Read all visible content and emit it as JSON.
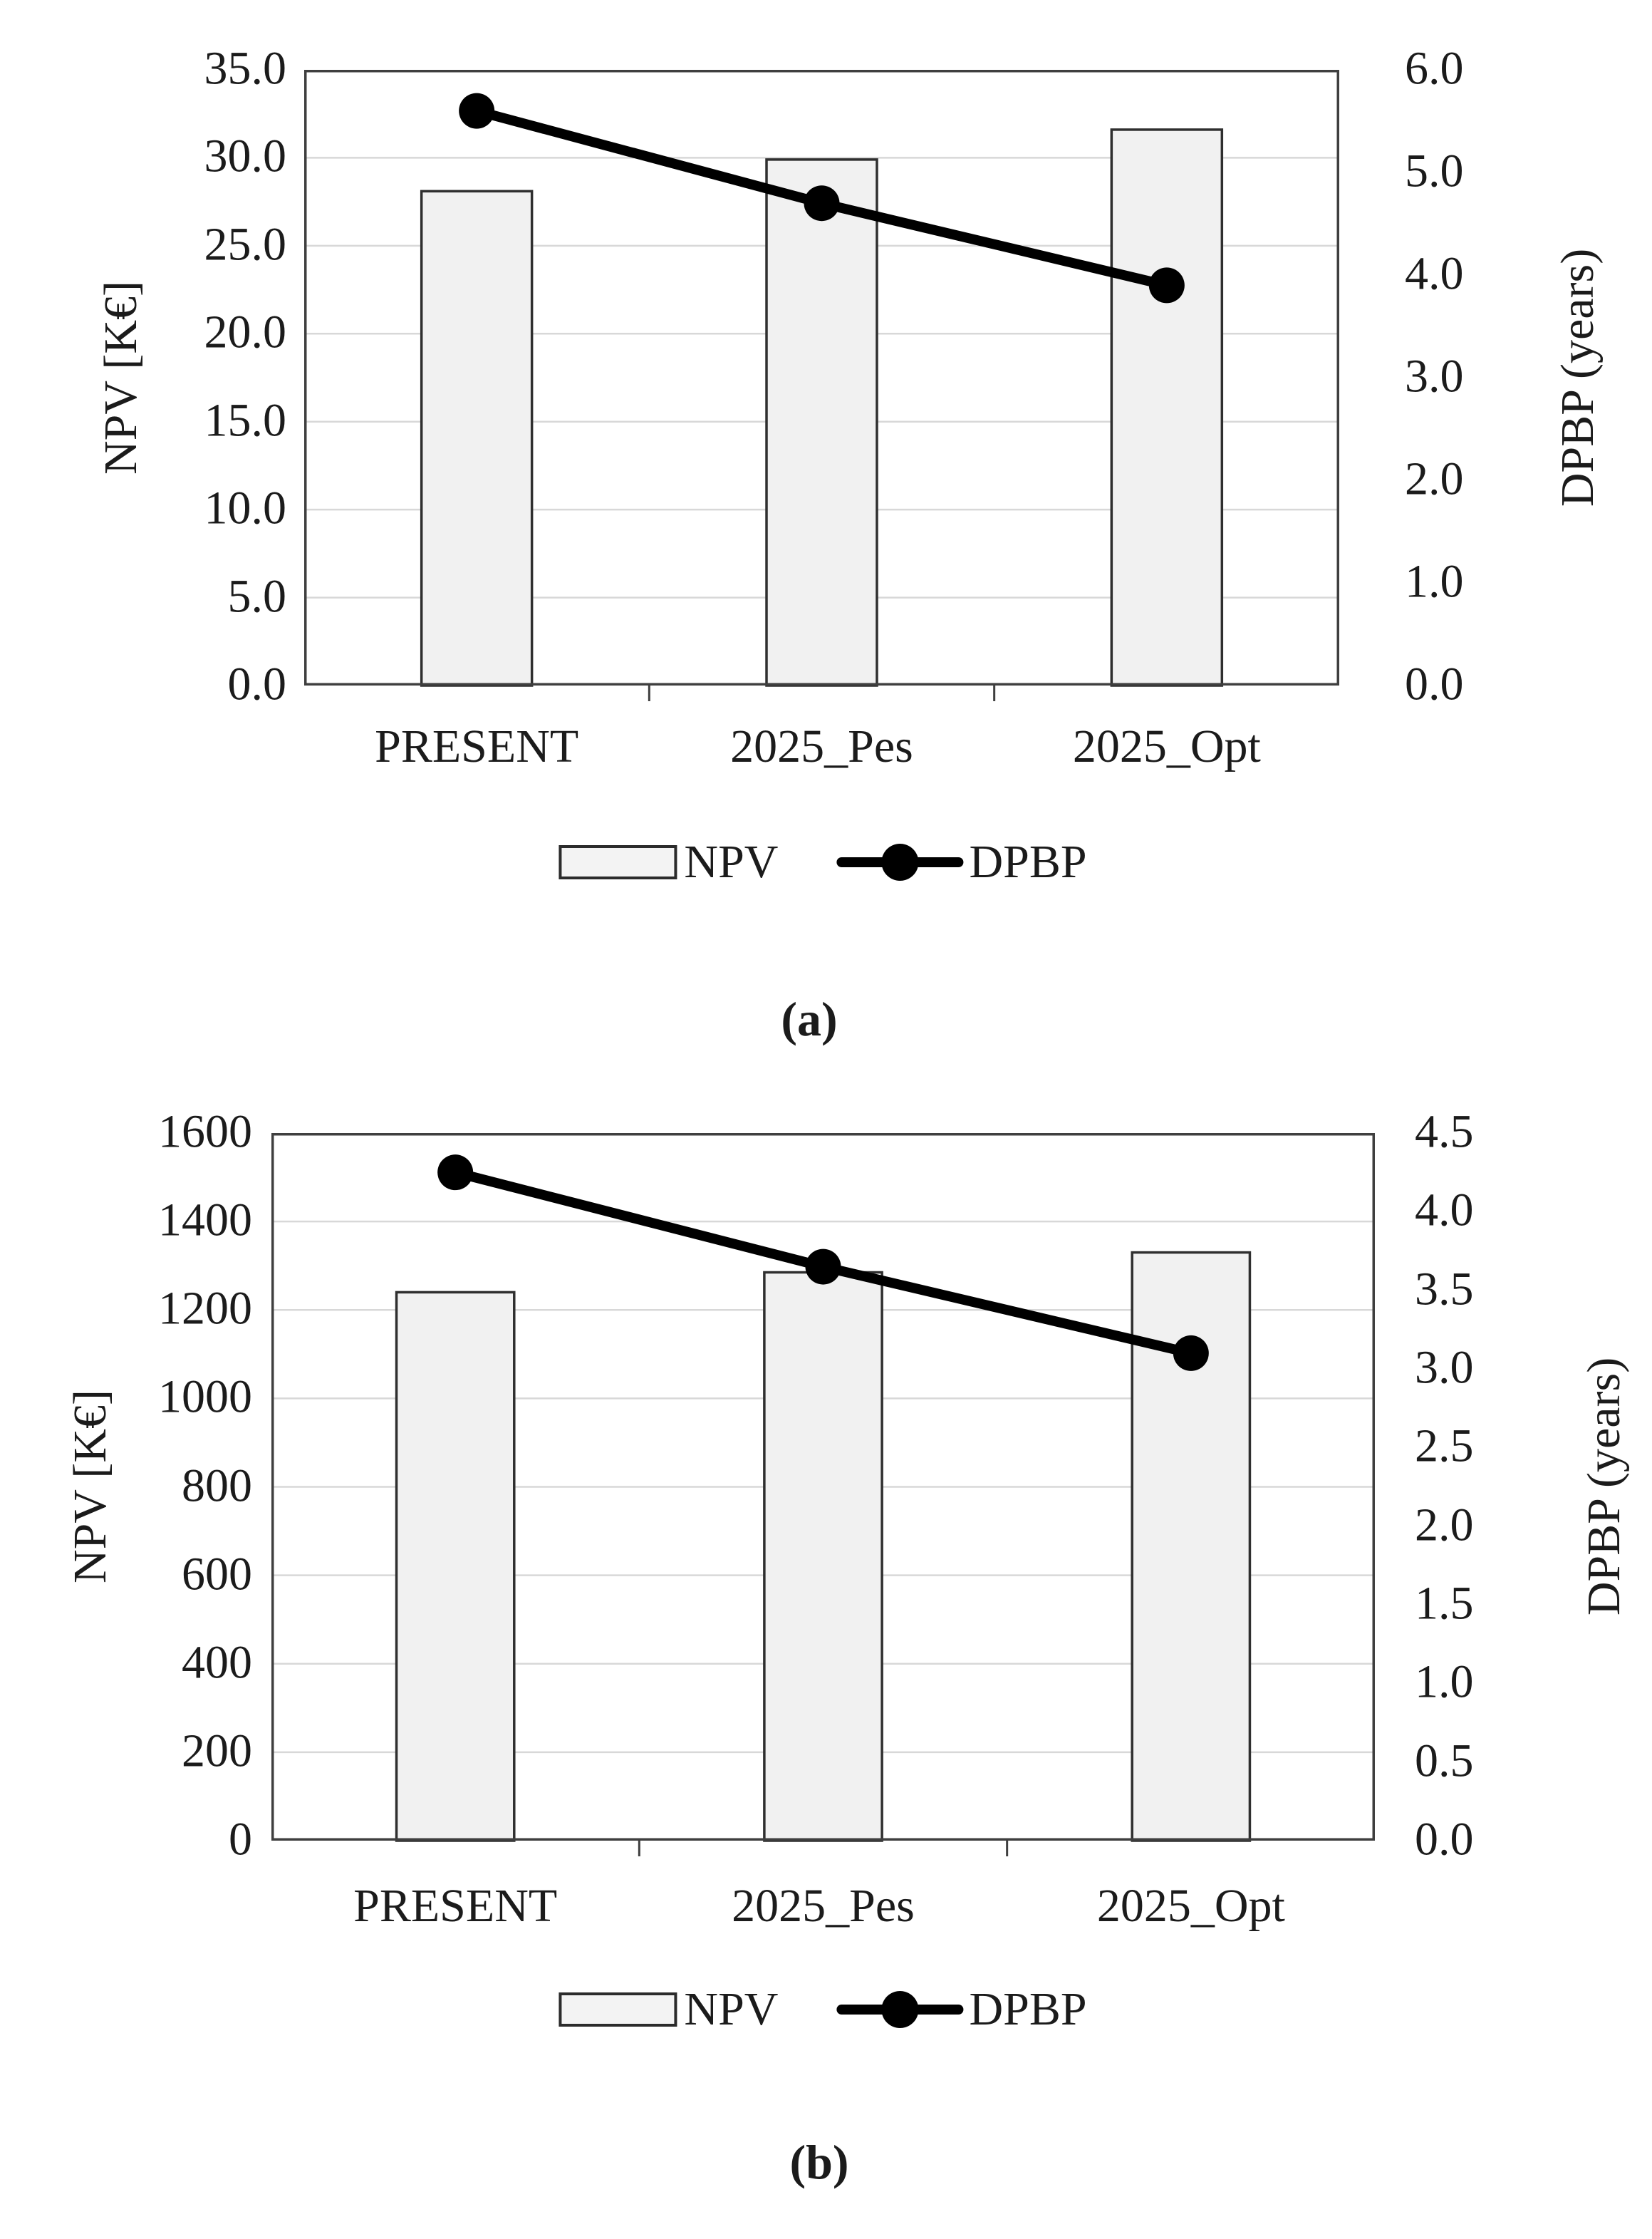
{
  "colors": {
    "background": "#ffffff",
    "bar_fill": "#f1f1f1",
    "bar_border": "#2f2f2f",
    "line": "#000000",
    "marker": "#000000",
    "grid": "#d8d8d8",
    "frame": "#3f3f3f",
    "text": "#1b1b1b"
  },
  "chart_data": [
    {
      "type": "bar+line",
      "caption": "(a)",
      "categories": [
        "PRESENT",
        "2025_Pes",
        "2025_Opt"
      ],
      "series": [
        {
          "name": "NPV",
          "type": "bar",
          "axis": "left",
          "values": [
            28.1,
            29.9,
            31.6
          ]
        },
        {
          "name": "DPBP",
          "type": "line",
          "axis": "right",
          "values": [
            5.6,
            4.7,
            3.9
          ]
        }
      ],
      "left_axis": {
        "label": "NPV [K€]",
        "min": 0,
        "max": 35,
        "step": 5,
        "tick_labels": [
          "35.0",
          "30.0",
          "25.0",
          "20.0",
          "15.0",
          "10.0",
          "5.0",
          "0.0"
        ]
      },
      "right_axis": {
        "label": "DPBP (years)",
        "min": 0,
        "max": 6,
        "step": 1,
        "tick_labels": [
          "6.0",
          "5.0",
          "4.0",
          "3.0",
          "2.0",
          "1.0",
          "0.0"
        ]
      },
      "grid": true,
      "legend_position": "bottom"
    },
    {
      "type": "bar+line",
      "caption": "(b)",
      "categories": [
        "PRESENT",
        "2025_Pes",
        "2025_Opt"
      ],
      "series": [
        {
          "name": "NPV",
          "type": "bar",
          "axis": "left",
          "values": [
            1240,
            1285,
            1330
          ]
        },
        {
          "name": "DPBP",
          "type": "line",
          "axis": "right",
          "values": [
            4.25,
            3.65,
            3.1
          ]
        }
      ],
      "left_axis": {
        "label": "NPV [K€]",
        "min": 0,
        "max": 1600,
        "step": 200,
        "tick_labels": [
          "1600",
          "1400",
          "1200",
          "1000",
          "800",
          "600",
          "400",
          "200",
          "0"
        ]
      },
      "right_axis": {
        "label": "DPBP (years)",
        "min": 0,
        "max": 4.5,
        "step": 0.5,
        "tick_labels": [
          "4.5",
          "4.0",
          "3.5",
          "3.0",
          "2.5",
          "2.0",
          "1.5",
          "1.0",
          "0.5",
          "0.0"
        ]
      },
      "grid": true,
      "legend_position": "bottom"
    }
  ]
}
